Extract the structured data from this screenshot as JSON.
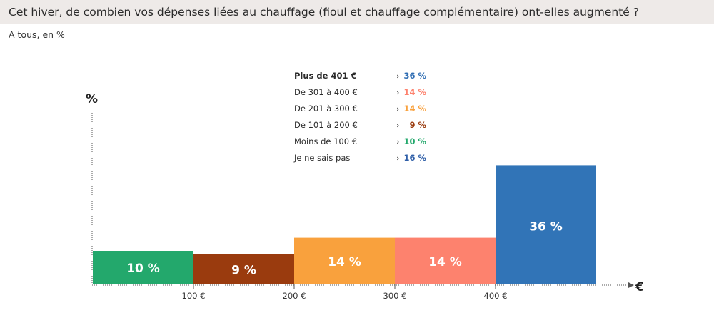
{
  "header": {
    "title": "Cet hiver, de combien vos dépenses liées au chauffage (fioul et chauffage complémentaire) ont-elles augmenté ?",
    "subtitle": "A tous, en %"
  },
  "chart_data": {
    "type": "bar",
    "ylabel": "%",
    "xlabel": "€",
    "x_ticks": [
      "100 €",
      "200 €",
      "300 €",
      "400 €"
    ],
    "bars": [
      {
        "value": 10,
        "label": "10 %",
        "color": "#23a86c"
      },
      {
        "value": 9,
        "label": "9 %",
        "color": "#9a3b0e"
      },
      {
        "value": 14,
        "label": "14 %",
        "color": "#f9a13d"
      },
      {
        "value": 14,
        "label": "14 %",
        "color": "#fd826e"
      },
      {
        "value": 36,
        "label": "36 %",
        "color": "#3174b7"
      }
    ],
    "legend": [
      {
        "label": "Plus de 401 €",
        "value": "36 %",
        "color": "#2f6db3",
        "bold": true
      },
      {
        "label": "De 301 à 400 €",
        "value": "14 %",
        "color": "#fd826e"
      },
      {
        "label": "De 201 à 300 €",
        "value": "14 %",
        "color": "#f9a13d"
      },
      {
        "label": "De 101 à 200 €",
        "value": "9 %",
        "color": "#9a3b0e"
      },
      {
        "label": "Moins de 100 €",
        "value": "10 %",
        "color": "#23a86c"
      },
      {
        "label": "Je ne sais pas",
        "value": "16 %",
        "color": "#2f5fa8"
      }
    ],
    "legend_arrow": "›",
    "legend_placement": "top-center",
    "grid": false
  }
}
